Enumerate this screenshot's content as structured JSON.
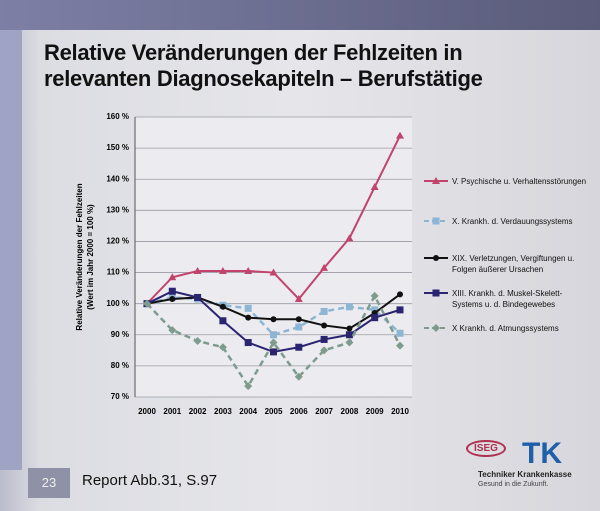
{
  "chart_data": {
    "type": "line",
    "title": [
      "Relative Veränderungen der Fehlzeiten in",
      "relevanten Diagnosekapiteln – Berufstätige"
    ],
    "y_label": [
      "Relative Veränderungen der Fehlzeiten",
      "(Wert im Jahr 2000 = 100 %)"
    ],
    "categories": [
      "2000",
      "2001",
      "2002",
      "2003",
      "2004",
      "2005",
      "2006",
      "2007",
      "2008",
      "2009",
      "2010"
    ],
    "ylim": [
      70,
      160
    ],
    "yticks": [
      {
        "value": 70,
        "label": "70 %"
      },
      {
        "value": 80,
        "label": "80 %"
      },
      {
        "value": 90,
        "label": "90 %"
      },
      {
        "value": 100,
        "label": "100 %"
      },
      {
        "value": 110,
        "label": "110 %"
      },
      {
        "value": 120,
        "label": "120 %"
      },
      {
        "value": 130,
        "label": "130 %"
      },
      {
        "value": 140,
        "label": "140 %"
      },
      {
        "value": 150,
        "label": "150 %"
      },
      {
        "value": 160,
        "label": "160 %"
      }
    ],
    "grid": true,
    "series": [
      {
        "name": "V. Psychische u. Verhaltensstörungen",
        "color": "#c2446c",
        "marker": "triangle",
        "dashed": false,
        "values": [
          100,
          108.5,
          110.5,
          110.5,
          110.5,
          110,
          101.5,
          111.5,
          121,
          137.5,
          154
        ]
      },
      {
        "name": "X. Krankh. d. Verdauungssystems",
        "color": "#8db6d4",
        "marker": "square",
        "dashed": true,
        "values": [
          100,
          102,
          101.5,
          99.5,
          98.5,
          90,
          92.5,
          97.5,
          99,
          98,
          90.5
        ]
      },
      {
        "name": "XIX. Verletzungen, Vergiftungen u. Folgen äußerer Ursachen",
        "color": "#111111",
        "marker": "circle",
        "dashed": false,
        "values": [
          100,
          101.5,
          102,
          99,
          95.5,
          95,
          95,
          93,
          92,
          97,
          103
        ]
      },
      {
        "name": "XIII. Krankh. d. Muskel-Skelett-Systems u. d. Bindegewebes",
        "color": "#2b2470",
        "marker": "square",
        "dashed": false,
        "values": [
          100,
          104,
          102,
          94.5,
          87.5,
          84.5,
          86,
          88.5,
          90,
          95.5,
          98
        ]
      },
      {
        "name": "X Krankh. d. Atmungssystems",
        "color": "#7e9c8e",
        "marker": "diamond",
        "dashed": true,
        "values": [
          100,
          91.5,
          88,
          86,
          73.5,
          87.5,
          76.5,
          85,
          87.5,
          102.5,
          86.5
        ]
      }
    ]
  },
  "footer": {
    "page": "23",
    "source": "Report Abb.31, S.97",
    "logo1": "ISEG",
    "logo2": "TK",
    "company": "Techniker Krankenkasse",
    "slogan": "Gesund in die Zukunft."
  }
}
